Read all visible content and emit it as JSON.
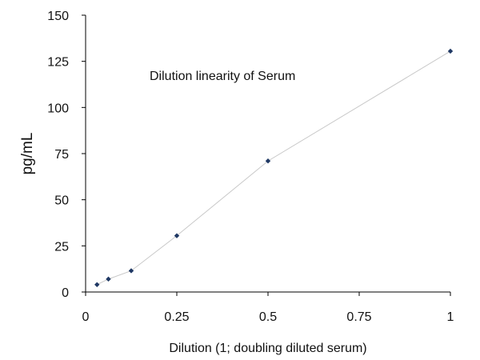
{
  "chart_data": {
    "type": "scatter",
    "annotation": "Dilution linearity of Serum",
    "xlabel": "Dilution (1; doubling diluted serum)",
    "ylabel": "pg/mL",
    "xlim": [
      0,
      1
    ],
    "ylim": [
      0,
      150
    ],
    "x_ticks": [
      "0",
      "0.25",
      "0.5",
      "0.75",
      "1"
    ],
    "y_ticks": [
      "0",
      "25",
      "50",
      "75",
      "100",
      "125",
      "150"
    ],
    "grid": false,
    "connect_points": true,
    "series": [
      {
        "color": "#1f3864",
        "line_color": "#c8c8c8",
        "x": [
          0.03125,
          0.0625,
          0.125,
          0.25,
          0.5,
          1
        ],
        "y": [
          4,
          7,
          11.5,
          30.5,
          71,
          130.5
        ]
      }
    ]
  }
}
